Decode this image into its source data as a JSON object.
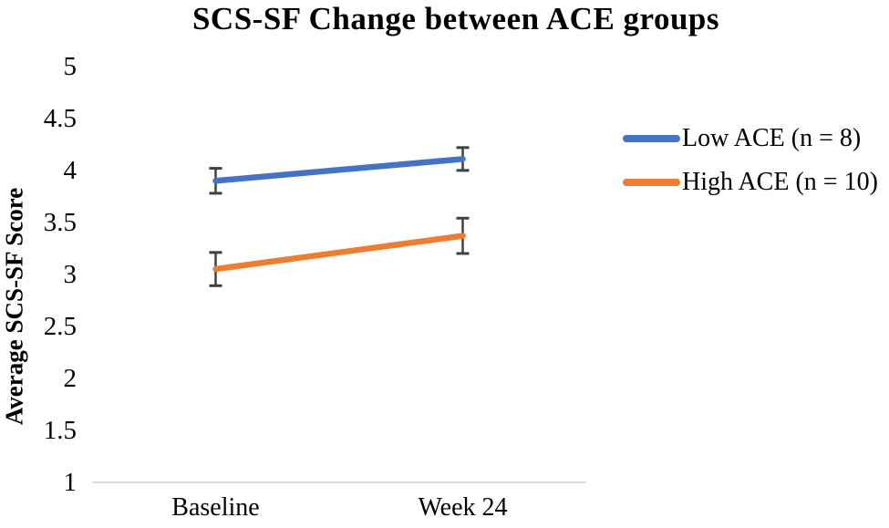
{
  "chart_data": {
    "type": "line",
    "title": "SCS-SF Change between ACE groups",
    "xlabel": "",
    "ylabel": "Average SCS-SF Score",
    "categories": [
      "Baseline",
      "Week 24"
    ],
    "series": [
      {
        "name": "Low ACE (n = 8)",
        "color": "#4472C4",
        "values": [
          3.9,
          4.11
        ],
        "error": [
          0.12,
          0.11
        ]
      },
      {
        "name": "High ACE (n = 10)",
        "color": "#ED7D31",
        "values": [
          3.05,
          3.37
        ],
        "error": [
          0.16,
          0.17
        ]
      }
    ],
    "ylim": [
      1,
      5
    ],
    "ytick_step": 0.5,
    "grid": false,
    "legend_position": "right",
    "error_bar_color": "#404040",
    "axis_line_color": "#D9D9D9",
    "background_color": "#FFFFFF"
  }
}
